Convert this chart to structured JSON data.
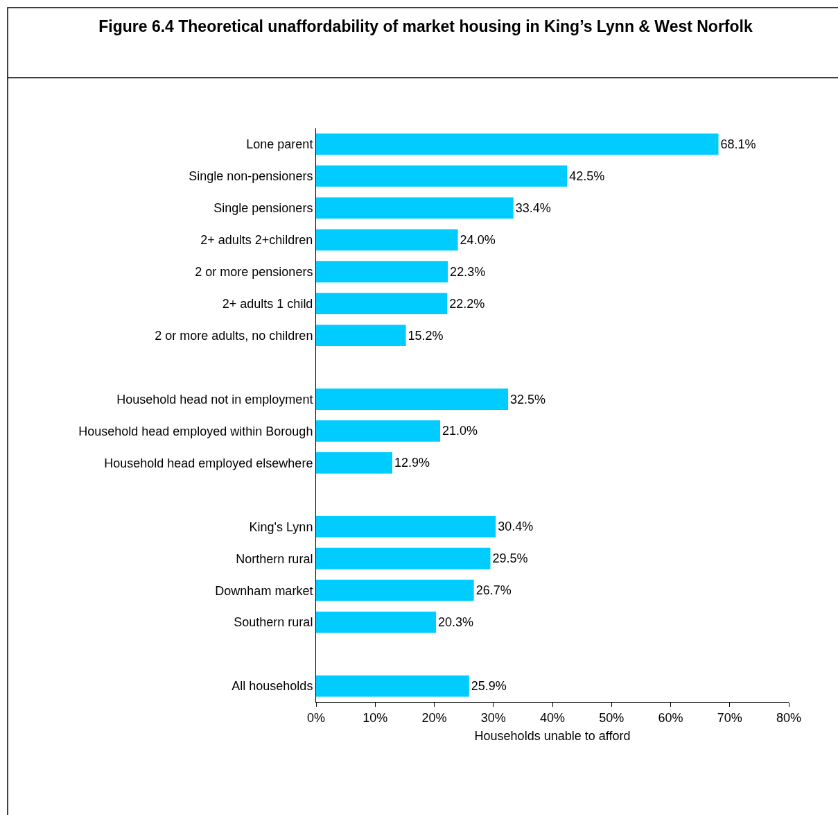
{
  "chart_data": {
    "type": "bar",
    "orientation": "horizontal",
    "title": "Figure 6.4 Theoretical unaffordability of market housing in King’s Lynn & West Norfolk",
    "xlabel": "Households unable to afford",
    "categories": [
      "Lone parent",
      "Single non-pensioners",
      "Single pensioners",
      "2+ adults 2+children",
      "2 or more pensioners",
      "2+ adults 1 child",
      "2 or more adults, no children",
      null,
      "Household head not in employment",
      "Household head employed within Borough",
      "Household head employed elsewhere",
      null,
      "King's Lynn",
      "Northern rural",
      "Downham market",
      "Southern rural",
      null,
      "All households"
    ],
    "values": [
      68.1,
      42.5,
      33.4,
      24.0,
      22.3,
      22.2,
      15.2,
      null,
      32.5,
      21.0,
      12.9,
      null,
      30.4,
      29.5,
      26.7,
      20.3,
      null,
      25.9
    ],
    "value_labels": [
      "68.1%",
      "42.5%",
      "33.4%",
      "24.0%",
      "22.3%",
      "22.2%",
      "15.2%",
      null,
      "32.5%",
      "21.0%",
      "12.9%",
      null,
      "30.4%",
      "29.5%",
      "26.7%",
      "20.3%",
      null,
      "25.9%"
    ],
    "color": "#00ccff",
    "xlim": [
      0,
      80
    ],
    "xticks": [
      {
        "value": 0,
        "label": "0%"
      },
      {
        "value": 10,
        "label": "10%"
      },
      {
        "value": 20,
        "label": "20%"
      },
      {
        "value": 30,
        "label": "30%"
      },
      {
        "value": 40,
        "label": "40%"
      },
      {
        "value": 50,
        "label": "50%"
      },
      {
        "value": 60,
        "label": "60%"
      },
      {
        "value": 70,
        "label": "70%"
      },
      {
        "value": 80,
        "label": "80%"
      }
    ],
    "legend": false
  }
}
